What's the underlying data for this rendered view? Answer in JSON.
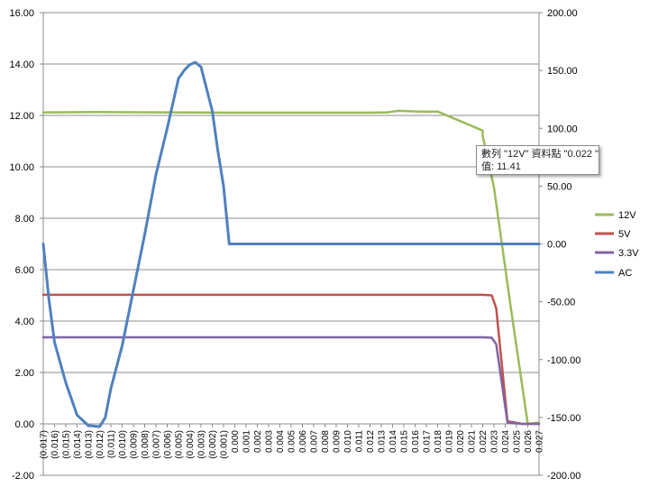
{
  "chart_data": {
    "type": "line",
    "title": "",
    "xlabel": "",
    "ylabel": "",
    "x_tick_labels": [
      "(0.017)",
      "(0.016)",
      "(0.015)",
      "(0.014)",
      "(0.013)",
      "(0.012)",
      "(0.011)",
      "(0.010)",
      "(0.009)",
      "(0.008)",
      "(0.007)",
      "(0.006)",
      "(0.005)",
      "(0.004)",
      "(0.003)",
      "(0.002)",
      "(0.001)",
      "0.000",
      "0.001",
      "0.002",
      "0.003",
      "0.004",
      "0.005",
      "0.006",
      "0.007",
      "0.008",
      "0.009",
      "0.010",
      "0.011",
      "0.012",
      "0.013",
      "0.014",
      "0.015",
      "0.016",
      "0.017",
      "0.018",
      "0.019",
      "0.020",
      "0.021",
      "0.022",
      "0.023",
      "0.024",
      "0.025",
      "0.026",
      "0.027"
    ],
    "xlim": [
      -0.017,
      0.027
    ],
    "y_left": {
      "lim": [
        -2,
        16
      ],
      "ticks": [
        "-2.00",
        "0.00",
        "2.00",
        "4.00",
        "6.00",
        "8.00",
        "10.00",
        "12.00",
        "14.00",
        "16.00"
      ]
    },
    "y_right": {
      "lim": [
        -200,
        200
      ],
      "ticks": [
        "-200.00",
        "-150.00",
        "-100.00",
        "-50.00",
        "0.00",
        "50.00",
        "100.00",
        "150.00",
        "200.00"
      ]
    },
    "grid": true,
    "legend_position": "right",
    "series": [
      {
        "name": "12V",
        "axis": "left",
        "color": "#9bbb59",
        "points": [
          [
            -0.017,
            12.12
          ],
          [
            -0.012,
            12.13
          ],
          [
            -0.006,
            12.12
          ],
          [
            0.0,
            12.11
          ],
          [
            0.006,
            12.11
          ],
          [
            0.012,
            12.11
          ],
          [
            0.0135,
            12.12
          ],
          [
            0.0145,
            12.18
          ],
          [
            0.0165,
            12.15
          ],
          [
            0.018,
            12.15
          ],
          [
            0.022,
            11.41
          ],
          [
            0.022,
            11.2
          ],
          [
            0.023,
            9.2
          ],
          [
            0.0245,
            4.5
          ],
          [
            0.026,
            0.0
          ],
          [
            0.027,
            0.05
          ]
        ]
      },
      {
        "name": "5V",
        "axis": "left",
        "color": "#c0504d",
        "points": [
          [
            -0.017,
            5.02
          ],
          [
            -0.005,
            5.02
          ],
          [
            0.005,
            5.02
          ],
          [
            0.015,
            5.02
          ],
          [
            0.022,
            5.02
          ],
          [
            0.0228,
            5.0
          ],
          [
            0.0232,
            4.5
          ],
          [
            0.0242,
            0.1
          ],
          [
            0.0255,
            0.0
          ],
          [
            0.027,
            0.0
          ]
        ]
      },
      {
        "name": "3.3V",
        "axis": "left",
        "color": "#8064a2",
        "points": [
          [
            -0.017,
            3.37
          ],
          [
            -0.005,
            3.37
          ],
          [
            0.005,
            3.37
          ],
          [
            0.015,
            3.37
          ],
          [
            0.022,
            3.37
          ],
          [
            0.0228,
            3.35
          ],
          [
            0.0232,
            3.1
          ],
          [
            0.0242,
            0.05
          ],
          [
            0.0255,
            0.0
          ],
          [
            0.027,
            0.0
          ]
        ]
      },
      {
        "name": "AC",
        "axis": "right",
        "color": "#4f81bd",
        "points": [
          [
            -0.017,
            0
          ],
          [
            -0.0165,
            -48
          ],
          [
            -0.016,
            -85
          ],
          [
            -0.015,
            -120
          ],
          [
            -0.014,
            -148
          ],
          [
            -0.013,
            -157
          ],
          [
            -0.012,
            -158
          ],
          [
            -0.0115,
            -150
          ],
          [
            -0.011,
            -125
          ],
          [
            -0.01,
            -88
          ],
          [
            -0.009,
            -40
          ],
          [
            -0.008,
            8
          ],
          [
            -0.007,
            60
          ],
          [
            -0.006,
            100
          ],
          [
            -0.005,
            143
          ],
          [
            -0.0045,
            150
          ],
          [
            -0.004,
            155
          ],
          [
            -0.0035,
            157
          ],
          [
            -0.003,
            153
          ],
          [
            -0.002,
            115
          ],
          [
            -0.0015,
            80
          ],
          [
            -0.001,
            50
          ],
          [
            -0.0005,
            0
          ],
          [
            0.0,
            0
          ],
          [
            0.027,
            0
          ]
        ]
      }
    ],
    "tooltip": {
      "line1": "數列 \"12V\" 資料點 \"0.022 \"",
      "line2": "值: 11.41"
    }
  }
}
